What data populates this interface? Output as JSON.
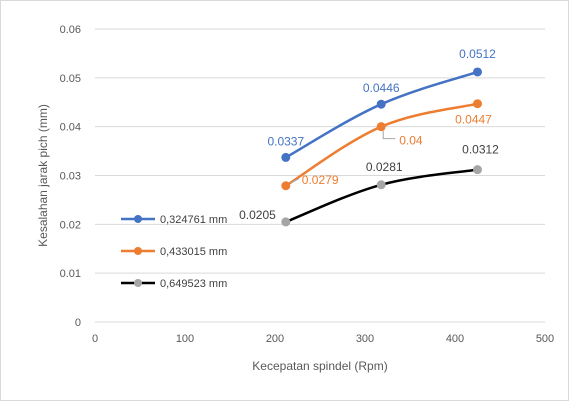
{
  "chart_data": {
    "type": "line",
    "title": "",
    "xlabel": "Kecepatan spindel (Rpm)",
    "ylabel": "Kesalahan jarak pich (mm)",
    "xlim": [
      0,
      500
    ],
    "ylim": [
      0,
      0.06
    ],
    "xticks": [
      0,
      100,
      200,
      300,
      400,
      500
    ],
    "yticks": [
      0,
      0.01,
      0.02,
      0.03,
      0.04,
      0.05,
      0.06
    ],
    "xtick_labels": [
      "0",
      "100",
      "200",
      "300",
      "400",
      "500"
    ],
    "ytick_labels": [
      "0",
      "0.01",
      "0.02",
      "0.03",
      "0.04",
      "0.05",
      "0.06"
    ],
    "grid": "horizontal",
    "legend_position": "left-inside",
    "x": [
      212,
      318,
      425
    ],
    "series": [
      {
        "name": "0,324761 mm",
        "color": "#4472C4",
        "values": [
          0.0337,
          0.0446,
          0.0512
        ],
        "labels": [
          "0.0337",
          "0.0446",
          "0.0512"
        ],
        "label_color": "#4472C4"
      },
      {
        "name": "0,433015 mm",
        "color": "#ED7D31",
        "values": [
          0.0279,
          0.04,
          0.0447
        ],
        "labels": [
          "0.0279",
          "0.04",
          "0.0447"
        ],
        "label_color": "#ED7D31"
      },
      {
        "name": "0,649523 mm",
        "color": "#000000",
        "marker_color": "#A5A5A5",
        "values": [
          0.0205,
          0.0281,
          0.0312
        ],
        "labels": [
          "0.0205",
          "0.0281",
          "0.0312"
        ],
        "label_color": "#404040"
      }
    ]
  }
}
